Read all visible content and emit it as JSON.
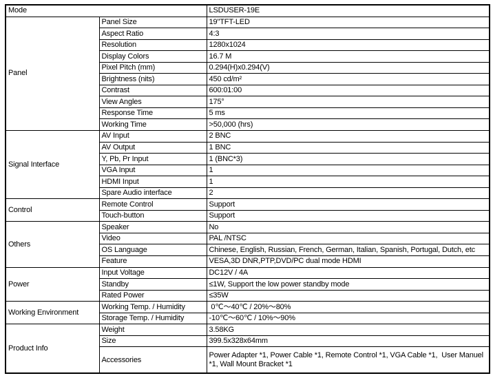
{
  "table": {
    "sections": [
      {
        "category": "Mode",
        "category_spans_two_columns": true,
        "rows": [
          {
            "label": null,
            "value": "LSDUSER-19E"
          }
        ]
      },
      {
        "category": "Panel",
        "rows": [
          {
            "label": "Panel Size",
            "value": "19\"TFT-LED"
          },
          {
            "label": "Aspect Ratio",
            "value": "4:3"
          },
          {
            "label": "Resolution",
            "value": "1280x1024"
          },
          {
            "label": "Display Colors",
            "value": "16.7 M"
          },
          {
            "label": "Pixel Pitch (mm)",
            "value": "0.294(H)x0.294(V)"
          },
          {
            "label": "Brightness (nits)",
            "value": "450 cd/m²"
          },
          {
            "label": "Contrast",
            "value": "600:01:00"
          },
          {
            "label": "View Angles",
            "value": "175°"
          },
          {
            "label": "Response Time",
            "value": "5 ms"
          },
          {
            "label": "Working Time",
            "value": ">50,000 (hrs)"
          }
        ]
      },
      {
        "category": "Signal Interface",
        "rows": [
          {
            "label": "AV Input",
            "value": "2 BNC"
          },
          {
            "label": "AV Output",
            "value": "1 BNC"
          },
          {
            "label": "Y, Pb, Pr Input",
            "value": "1 (BNC*3)"
          },
          {
            "label": "VGA Input",
            "value": "1"
          },
          {
            "label": "HDMI Input",
            "value": "1"
          },
          {
            "label": "Spare Audio interface",
            "value": "2"
          }
        ]
      },
      {
        "category": "Control",
        "rows": [
          {
            "label": "Remote Control",
            "value": "Support"
          },
          {
            "label": "Touch-button",
            "value": "Support"
          }
        ]
      },
      {
        "category": "Others",
        "rows": [
          {
            "label": "Speaker",
            "value": "No"
          },
          {
            "label": "Video",
            "value": "PAL /NTSC"
          },
          {
            "label": "OS Language",
            "value": "Chinese, English, Russian, French, German, Italian, Spanish, Portugal, Dutch, etc"
          },
          {
            "label": "Feature",
            "value": "VESA,3D DNR,PTP,DVD/PC dual mode HDMI"
          }
        ]
      },
      {
        "category": "Power",
        "rows": [
          {
            "label": "Input Voltage",
            "value": "DC12V / 4A"
          },
          {
            "label": "Standby",
            "value": "≤1W, Support the low power standby mode"
          },
          {
            "label": "Rated Power",
            "value": "≤35W"
          }
        ]
      },
      {
        "category": "Working Environment",
        "rows": [
          {
            "label": "Working Temp. / Humidity",
            "value": " 0℃～40℃ / 20%～80%"
          },
          {
            "label": "Storage Temp. / Humidity",
            "value": "-10℃～60℃ / 10%～90%"
          }
        ]
      },
      {
        "category": "Product Info",
        "rows": [
          {
            "label": "Weight",
            "value": "3.58KG"
          },
          {
            "label": "Size",
            "value": "399.5x328x64mm"
          },
          {
            "label": "Accessories",
            "value": "Power Adapter *1, Power Cable *1, Remote Control *1, VGA Cable *1,  User Manuel *1, Wall Mount Bracket *1",
            "tall": true
          }
        ]
      }
    ],
    "columns": {
      "category_width": 136,
      "label_width": 156,
      "value_width": 411
    },
    "colors": {
      "border": "#000000",
      "text": "#000000",
      "background": "#ffffff"
    }
  }
}
